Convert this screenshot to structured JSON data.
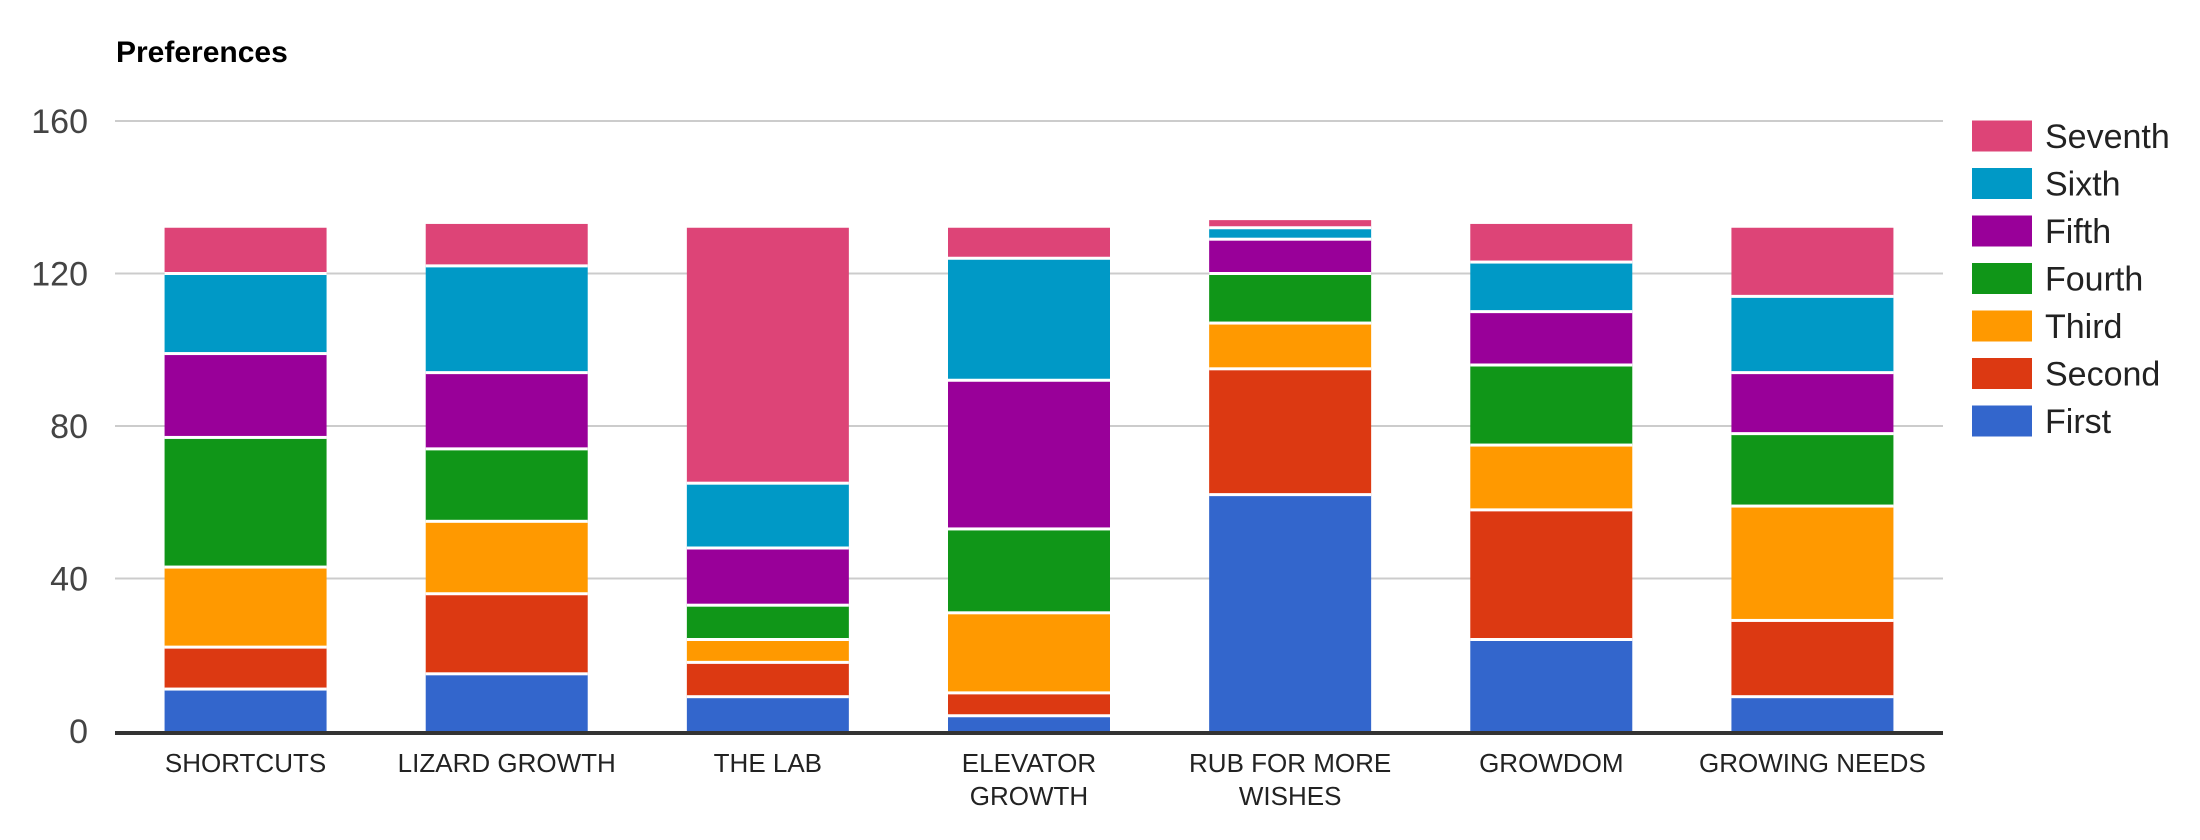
{
  "chart_data": {
    "type": "bar",
    "stacked": true,
    "title": "Preferences",
    "categories": [
      "SHORTCUTS",
      "LIZARD GROWTH",
      "THE LAB",
      "ELEVATOR\nGROWTH",
      "RUB FOR MORE\nWISHES",
      "GROWDOM",
      "GROWING NEEDS"
    ],
    "series": [
      {
        "name": "First",
        "color": "#3366cc",
        "values": [
          11,
          15,
          9,
          4,
          62,
          24,
          9
        ]
      },
      {
        "name": "Second",
        "color": "#dc3912",
        "values": [
          11,
          21,
          9,
          6,
          33,
          34,
          20
        ]
      },
      {
        "name": "Third",
        "color": "#ff9900",
        "values": [
          21,
          19,
          6,
          21,
          12,
          17,
          30
        ]
      },
      {
        "name": "Fourth",
        "color": "#109618",
        "values": [
          34,
          19,
          9,
          22,
          13,
          21,
          19
        ]
      },
      {
        "name": "Fifth",
        "color": "#990099",
        "values": [
          22,
          20,
          15,
          39,
          9,
          14,
          16
        ]
      },
      {
        "name": "Sixth",
        "color": "#0099c6",
        "values": [
          21,
          28,
          17,
          32,
          3,
          13,
          20
        ]
      },
      {
        "name": "Seventh",
        "color": "#dd4477",
        "values": [
          12,
          11,
          67,
          8,
          2,
          10,
          18
        ]
      }
    ],
    "stack_totals": [
      132,
      133,
      132,
      132,
      134,
      133,
      132
    ],
    "legend": {
      "position": "right",
      "labels_top_to_bottom": [
        "Seventh",
        "Sixth",
        "Fifth",
        "Fourth",
        "Third",
        "Second",
        "First"
      ]
    },
    "y_axis": {
      "ticks": [
        0,
        40,
        80,
        120,
        160
      ],
      "range": [
        0,
        160
      ]
    },
    "x_axis": {
      "label": ""
    },
    "grid": true,
    "colors": {
      "background": "#ffffff",
      "grid": "#cccccc",
      "baseline": "#333333",
      "tick_text": "#444444",
      "category_text": "#222222",
      "legend_text": "#222222",
      "title_text": "#000000",
      "segment_gap": "#ffffff"
    }
  }
}
